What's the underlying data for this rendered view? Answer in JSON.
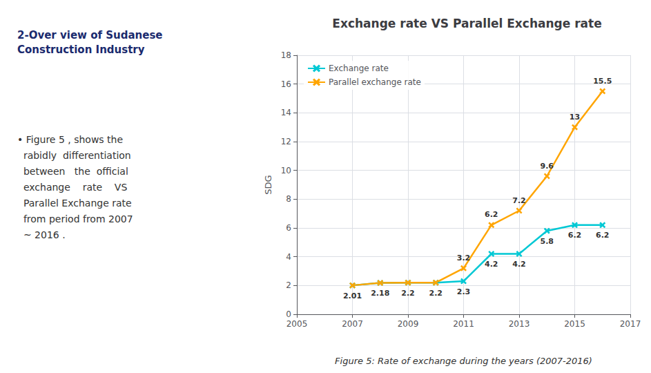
{
  "chart_data": {
    "type": "line",
    "title": "Exchange rate VS Parallel Exchange rate",
    "ylabel": "SDG",
    "x": [
      2007,
      2008,
      2009,
      2010,
      2011,
      2012,
      2013,
      2014,
      2015,
      2016
    ],
    "series": [
      {
        "name": "Exchange rate",
        "color": "#00c8d4",
        "marker": "x",
        "values": [
          2.01,
          2.18,
          2.2,
          2.2,
          2.3,
          4.2,
          4.2,
          5.8,
          6.2,
          6.2
        ]
      },
      {
        "name": "Parallel exchange rate",
        "color": "#FFA500",
        "marker": "x",
        "values": [
          2.01,
          2.18,
          2.2,
          2.2,
          3.2,
          6.2,
          7.2,
          9.6,
          13.0,
          15.5
        ],
        "value_labels": [
          null,
          null,
          null,
          null,
          "3.2",
          "6.2",
          "7.2",
          "9.6",
          "13",
          "15.5"
        ]
      }
    ],
    "xlim": [
      2005,
      2017
    ],
    "xticks": [
      2005,
      2007,
      2009,
      2011,
      2013,
      2015,
      2017
    ],
    "ylim": [
      0,
      18
    ],
    "yticks": [
      0,
      2,
      4,
      6,
      8,
      10,
      12,
      14,
      16,
      18
    ],
    "grid": true,
    "legend": "upper left",
    "data_labels": true,
    "annotations": [
      "2-Over view of Sudanese\nConstruction Industry",
      "• Figure 5 , shows the\n  rabidly  differentiation\n  between   the  official\n  exchange    rate    VS\n  Parallel Exchange rate\n  from period from 2007\n  ~ 2016 .",
      "Figure 5: Rate of exchange during the years (2007-2016)"
    ]
  }
}
